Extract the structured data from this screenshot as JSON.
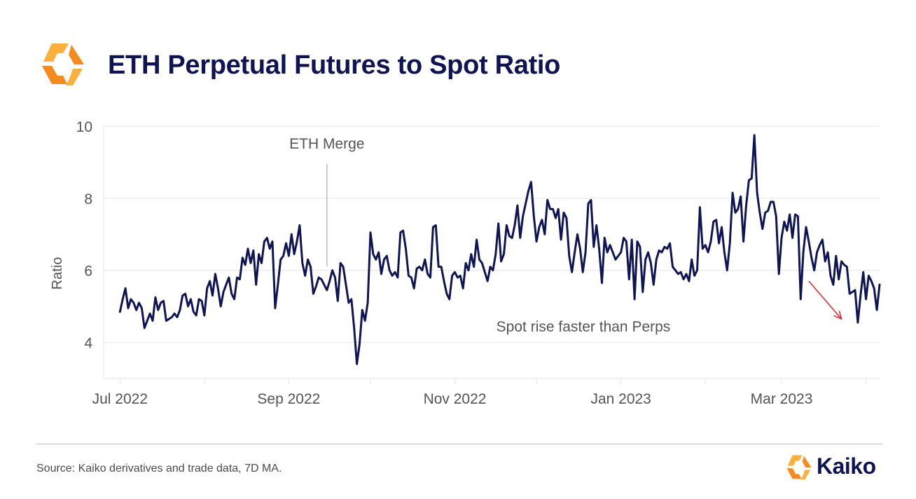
{
  "header": {
    "title": "ETH Perpetual Futures to Spot Ratio",
    "logo_icon": "kaiko-hexagon-logo-icon"
  },
  "footer": {
    "source": "Source: Kaiko derivatives and trade data, 7D MA.",
    "brand_name": "Kaiko"
  },
  "colors": {
    "title": "#0f1554",
    "line": "#0f1554",
    "annotation_arrow": "#e0262b",
    "logo_orange": "#f58a1f",
    "logo_yellow": "#fbb03b",
    "grid": "#e6e6ec"
  },
  "chart_data": {
    "type": "line",
    "title": "ETH Perpetual Futures to Spot Ratio",
    "xlabel": "",
    "ylabel": "Ratio",
    "ylim": [
      3,
      10
    ],
    "yticks": [
      4,
      6,
      8,
      10
    ],
    "xlim": [
      "2022-06-25",
      "2023-04-06"
    ],
    "xticks": [
      {
        "date": "2022-07-01",
        "label": "Jul 2022"
      },
      {
        "date": "2022-09-01",
        "label": "Sep 2022"
      },
      {
        "date": "2022-11-01",
        "label": "Nov 2022"
      },
      {
        "date": "2023-01-01",
        "label": "Jan 2023"
      },
      {
        "date": "2023-03-01",
        "label": "Mar 2023"
      }
    ],
    "grid": true,
    "legend": "none",
    "annotations": [
      {
        "text": "ETH Merge",
        "x": "2022-09-15",
        "kind": "vertical-line"
      },
      {
        "text": "Spot rise faster than Perps",
        "kind": "arrow-note",
        "x_from": "2023-03-11",
        "x_to": "2023-03-23",
        "y_from": 5.7,
        "y_to": 4.65
      }
    ],
    "start_date": "2022-07-01",
    "series": [
      {
        "values": [
          4.85,
          5.2,
          5.5,
          4.95,
          5.2,
          5.1,
          4.9,
          5.1,
          4.95,
          4.4,
          4.6,
          4.8,
          4.6,
          5.25,
          4.9,
          5.1,
          5.15,
          4.6,
          4.65,
          4.7,
          4.8,
          4.7,
          4.9,
          5.3,
          5.35,
          5.0,
          5.2,
          4.85,
          4.75,
          5.2,
          5.15,
          4.75,
          5.5,
          5.7,
          5.3,
          5.9,
          5.5,
          5.0,
          5.4,
          5.6,
          5.8,
          5.35,
          5.2,
          5.8,
          5.75,
          6.35,
          6.15,
          6.6,
          6.2,
          6.55,
          5.6,
          6.45,
          6.2,
          6.8,
          6.9,
          6.6,
          6.8,
          4.95,
          5.6,
          6.3,
          6.4,
          6.75,
          6.4,
          7.0,
          6.45,
          6.8,
          7.25,
          6.2,
          5.85,
          6.3,
          6.1,
          5.35,
          5.55,
          5.8,
          5.75,
          5.6,
          5.45,
          5.7,
          6.0,
          5.8,
          5.15,
          6.2,
          6.1,
          5.6,
          5.1,
          5.2,
          4.4,
          3.4,
          3.95,
          4.9,
          4.6,
          5.1,
          7.05,
          6.45,
          6.3,
          6.5,
          5.9,
          6.3,
          6.4,
          6.0,
          5.85,
          5.95,
          5.8,
          7.05,
          7.1,
          6.6,
          5.85,
          5.8,
          5.5,
          6.05,
          6.1,
          6.0,
          6.3,
          5.9,
          5.8,
          7.2,
          7.25,
          6.1,
          6.1,
          5.7,
          5.35,
          5.2,
          5.85,
          5.95,
          5.8,
          5.85,
          5.5,
          6.2,
          6.0,
          6.45,
          6.1,
          6.85,
          6.3,
          6.2,
          5.95,
          5.7,
          6.1,
          6.0,
          6.45,
          7.3,
          6.25,
          6.45,
          7.25,
          6.95,
          6.9,
          7.25,
          7.8,
          6.9,
          7.5,
          7.85,
          8.2,
          8.45,
          7.5,
          6.8,
          7.2,
          7.4,
          7.0,
          7.95,
          7.7,
          7.7,
          7.45,
          7.7,
          6.85,
          7.6,
          7.45,
          6.4,
          5.95,
          6.5,
          7.0,
          6.6,
          5.95,
          6.5,
          7.85,
          7.95,
          6.65,
          7.25,
          6.6,
          5.65,
          6.9,
          6.5,
          6.7,
          6.5,
          6.3,
          6.4,
          6.5,
          6.9,
          6.8,
          5.75,
          6.85,
          5.2,
          6.8,
          6.65,
          5.4,
          6.3,
          6.5,
          6.2,
          5.6,
          6.3,
          6.55,
          6.5,
          6.65,
          6.6,
          6.75,
          6.1,
          6.0,
          5.9,
          5.95,
          5.75,
          5.9,
          5.7,
          6.3,
          5.85,
          6.0,
          7.75,
          6.6,
          6.7,
          6.5,
          6.8,
          7.35,
          7.4,
          6.75,
          7.2,
          6.5,
          6.0,
          6.75,
          8.15,
          7.6,
          7.7,
          8.05,
          6.8,
          7.8,
          8.5,
          8.55,
          9.75,
          8.15,
          7.6,
          7.15,
          7.6,
          7.65,
          7.9,
          7.9,
          7.5,
          5.9,
          6.9,
          7.35,
          7.1,
          7.55,
          6.9,
          7.55,
          7.5,
          5.2,
          6.5,
          7.2,
          6.8,
          6.35,
          6.0,
          6.5,
          6.7,
          6.85,
          6.25,
          6.5,
          5.85,
          5.6,
          6.4,
          5.75,
          6.25,
          6.15,
          6.1,
          5.35,
          5.4,
          5.45,
          4.55,
          5.3,
          5.95,
          5.2,
          5.85,
          5.7,
          5.5,
          4.9,
          5.6
        ]
      }
    ]
  }
}
